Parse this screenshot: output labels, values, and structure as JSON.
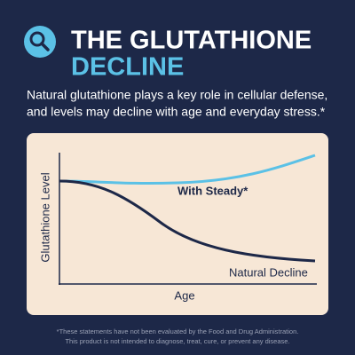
{
  "header": {
    "title_line1": "THE GLUTATHIONE",
    "title_line2": "DECLINE"
  },
  "intro": {
    "line1": "Natural glutathione plays a key role in cellular defense,",
    "line2": "and levels may decline with age and everyday stress.*"
  },
  "diagram": {
    "y_axis_label": "Glutathione Level",
    "x_axis_label": "Age",
    "upper_curve_label": "With Steady*",
    "lower_curve_label": "Natural Decline"
  },
  "footnote": {
    "line1": "*These statements have not been evaluated by the Food and Drug Administration.",
    "line2": "This product is not intended to diagnose, treat, cure, or prevent any disease."
  }
}
